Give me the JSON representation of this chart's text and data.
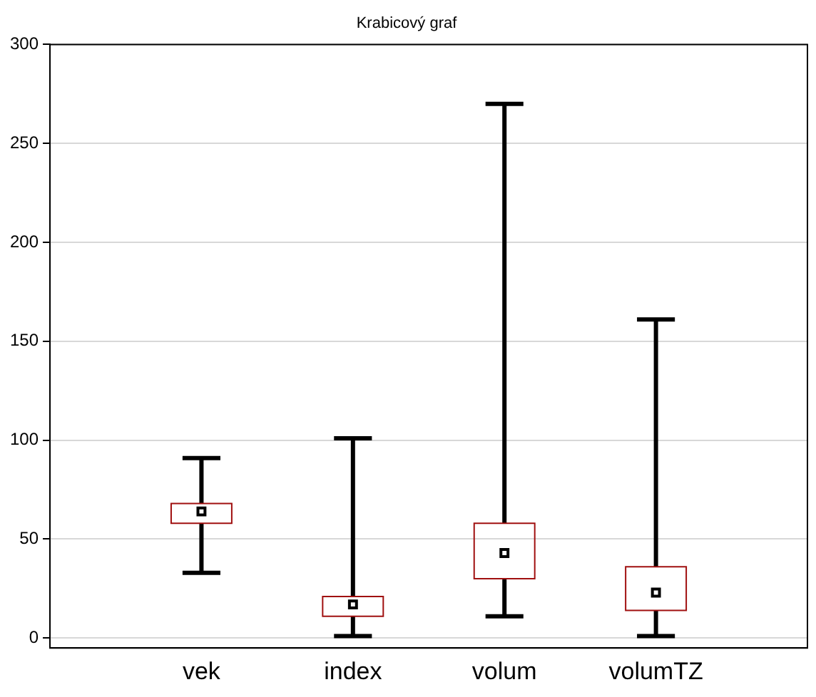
{
  "chart_data": {
    "type": "box",
    "title": "Krabicový graf",
    "categories": [
      "vek",
      "index",
      "volum",
      "volumTZ"
    ],
    "color": "#a01010",
    "marker": "square",
    "grid": "y",
    "ylim": [
      -5,
      300
    ],
    "yticks": [
      0,
      50,
      100,
      150,
      200,
      250,
      300
    ],
    "boxes": [
      {
        "low": 33,
        "q1": 58,
        "median": 64,
        "q3": 68,
        "high": 91
      },
      {
        "low": 1,
        "q1": 11,
        "median": 17,
        "q3": 21,
        "high": 101
      },
      {
        "low": 11,
        "q1": 30,
        "median": 43,
        "q3": 58,
        "high": 270
      },
      {
        "low": 1,
        "q1": 14,
        "median": 23,
        "q3": 36,
        "high": 161
      }
    ]
  }
}
